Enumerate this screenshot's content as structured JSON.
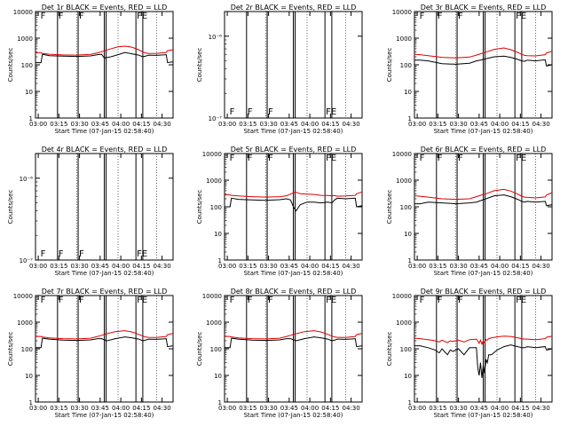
{
  "colors": {
    "events": "#000000",
    "lld": "#e00000",
    "axes": "#000000"
  },
  "shared": {
    "xlabel": "Start Time (07-Jan-15 02:58:40)",
    "ylabel": "Counts/sec",
    "x_tick_labels": [
      "03:00",
      "03:15",
      "03:30",
      "03:45",
      "04:00",
      "04:15",
      "04:30"
    ],
    "x_range_minutes": [
      0,
      100
    ],
    "y_scale": "log",
    "marker_letters": [
      "F",
      "F",
      "F",
      "FE"
    ]
  },
  "chart_data": [
    {
      "type": "line",
      "title": "Det 1r  BLACK = Events, RED = LLD",
      "ylim": [
        1,
        10000
      ],
      "y_tick_labels": [
        "1",
        "10",
        "100",
        "1000",
        "10000"
      ],
      "series": [
        {
          "x": [
            0,
            4,
            5,
            10,
            20,
            30,
            40,
            45,
            48,
            50,
            54,
            60,
            65,
            70,
            75,
            78,
            80,
            82,
            88,
            95,
            96,
            100
          ],
          "values": [
            120,
            120,
            250,
            220,
            210,
            205,
            215,
            240,
            250,
            180,
            195,
            240,
            290,
            260,
            230,
            200,
            210,
            230,
            225,
            240,
            120,
            130
          ]
        },
        {
          "x": [
            0,
            4,
            5,
            10,
            20,
            30,
            40,
            45,
            48,
            50,
            54,
            60,
            65,
            70,
            75,
            78,
            80,
            82,
            88,
            95,
            96,
            100
          ],
          "values": [
            280,
            280,
            270,
            250,
            235,
            230,
            245,
            280,
            310,
            330,
            390,
            470,
            500,
            460,
            370,
            300,
            280,
            270,
            265,
            290,
            340,
            370
          ]
        }
      ]
    },
    {
      "type": "line",
      "title": "Det 2r  BLACK = Events, RED = LLD",
      "ylim": [
        1e-07,
        2e-06
      ],
      "y_tick_labels": [
        "10⁻⁷",
        "10⁻⁶"
      ],
      "series": [
        {
          "x": [],
          "values": []
        },
        {
          "x": [],
          "values": []
        }
      ]
    },
    {
      "type": "line",
      "title": "Det 3r  BLACK = Events, RED = LLD",
      "ylim": [
        1,
        10000
      ],
      "y_tick_labels": [
        "1",
        "10",
        "100",
        "1000",
        "10000"
      ],
      "series": [
        {
          "x": [
            0,
            4,
            10,
            20,
            30,
            40,
            45,
            48,
            52,
            58,
            65,
            70,
            75,
            78,
            80,
            82,
            88,
            95,
            96,
            100
          ],
          "values": [
            150,
            150,
            140,
            110,
            105,
            115,
            140,
            150,
            170,
            200,
            210,
            190,
            160,
            140,
            135,
            150,
            140,
            155,
            90,
            100
          ]
        },
        {
          "x": [
            0,
            4,
            10,
            20,
            30,
            40,
            45,
            48,
            52,
            58,
            65,
            70,
            75,
            78,
            80,
            82,
            88,
            95,
            96,
            100
          ],
          "values": [
            250,
            240,
            220,
            190,
            180,
            195,
            230,
            260,
            300,
            380,
            430,
            370,
            290,
            245,
            225,
            220,
            215,
            240,
            280,
            320
          ]
        }
      ]
    },
    {
      "type": "line",
      "title": "Det 4r  BLACK = Events, RED = LLD",
      "ylim": [
        1e-07,
        2e-06
      ],
      "y_tick_labels": [
        "10⁻⁷",
        "10⁻⁶"
      ],
      "series": [
        {
          "x": [],
          "values": []
        },
        {
          "x": [],
          "values": []
        }
      ]
    },
    {
      "type": "line",
      "title": "Det 5r  BLACK = Events, RED = LLD",
      "ylim": [
        1,
        10000
      ],
      "y_tick_labels": [
        "1",
        "10",
        "100",
        "1000",
        "10000"
      ],
      "series": [
        {
          "x": [
            0,
            4,
            5,
            10,
            20,
            30,
            40,
            45,
            48,
            50,
            52,
            55,
            60,
            65,
            70,
            75,
            78,
            80,
            82,
            88,
            95,
            96,
            100
          ],
          "values": [
            100,
            100,
            210,
            190,
            180,
            175,
            185,
            200,
            180,
            100,
            70,
            120,
            150,
            150,
            140,
            150,
            140,
            180,
            210,
            200,
            210,
            100,
            110
          ]
        },
        {
          "x": [
            0,
            4,
            5,
            10,
            20,
            30,
            40,
            45,
            48,
            50,
            52,
            55,
            60,
            65,
            70,
            75,
            78,
            80,
            82,
            88,
            95,
            96,
            100
          ],
          "values": [
            280,
            280,
            270,
            255,
            240,
            230,
            240,
            260,
            300,
            330,
            350,
            310,
            300,
            290,
            270,
            265,
            260,
            265,
            250,
            255,
            270,
            310,
            360
          ]
        }
      ]
    },
    {
      "type": "line",
      "title": "Det 6r  BLACK = Events, RED = LLD",
      "ylim": [
        1,
        10000
      ],
      "y_tick_labels": [
        "1",
        "10",
        "100",
        "1000",
        "10000"
      ],
      "series": [
        {
          "x": [
            0,
            4,
            10,
            20,
            30,
            40,
            45,
            48,
            52,
            58,
            65,
            70,
            75,
            78,
            80,
            82,
            88,
            95,
            96,
            100
          ],
          "values": [
            130,
            130,
            150,
            140,
            130,
            140,
            150,
            170,
            200,
            260,
            280,
            240,
            190,
            160,
            150,
            160,
            150,
            160,
            110,
            120
          ]
        },
        {
          "x": [
            0,
            4,
            10,
            20,
            30,
            40,
            45,
            48,
            52,
            58,
            65,
            70,
            75,
            78,
            80,
            82,
            88,
            95,
            96,
            100
          ],
          "values": [
            260,
            250,
            230,
            200,
            190,
            200,
            240,
            270,
            310,
            400,
            450,
            390,
            300,
            250,
            230,
            225,
            215,
            235,
            280,
            340
          ]
        }
      ]
    },
    {
      "type": "line",
      "title": "Det 7r  BLACK = Events, RED = LLD",
      "ylim": [
        1,
        10000
      ],
      "y_tick_labels": [
        "1",
        "10",
        "100",
        "1000",
        "10000"
      ],
      "series": [
        {
          "x": [
            0,
            4,
            5,
            10,
            20,
            30,
            40,
            45,
            48,
            52,
            58,
            65,
            70,
            75,
            78,
            80,
            82,
            88,
            95,
            96,
            100
          ],
          "values": [
            110,
            110,
            250,
            230,
            210,
            205,
            215,
            240,
            240,
            200,
            240,
            280,
            260,
            230,
            200,
            210,
            230,
            225,
            240,
            120,
            130
          ]
        },
        {
          "x": [
            0,
            4,
            5,
            10,
            20,
            30,
            40,
            45,
            48,
            52,
            58,
            65,
            70,
            75,
            78,
            80,
            82,
            88,
            95,
            96,
            100
          ],
          "values": [
            290,
            290,
            280,
            255,
            240,
            235,
            250,
            290,
            320,
            370,
            440,
            480,
            430,
            350,
            300,
            280,
            270,
            265,
            290,
            340,
            380
          ]
        }
      ]
    },
    {
      "type": "line",
      "title": "Det 8r  BLACK = Events, RED = LLD",
      "ylim": [
        1,
        10000
      ],
      "y_tick_labels": [
        "1",
        "10",
        "100",
        "1000",
        "10000"
      ],
      "series": [
        {
          "x": [
            0,
            4,
            5,
            10,
            20,
            30,
            40,
            45,
            48,
            52,
            58,
            65,
            70,
            75,
            78,
            80,
            82,
            88,
            95,
            96,
            100
          ],
          "values": [
            110,
            110,
            250,
            230,
            210,
            205,
            215,
            240,
            240,
            200,
            240,
            280,
            260,
            230,
            200,
            210,
            230,
            225,
            240,
            120,
            130
          ]
        },
        {
          "x": [
            0,
            4,
            5,
            10,
            20,
            30,
            40,
            45,
            48,
            52,
            58,
            65,
            70,
            75,
            78,
            80,
            82,
            88,
            95,
            96,
            100
          ],
          "values": [
            290,
            290,
            280,
            255,
            240,
            235,
            250,
            290,
            320,
            370,
            440,
            480,
            430,
            350,
            300,
            280,
            270,
            265,
            290,
            340,
            380
          ]
        }
      ]
    },
    {
      "type": "line",
      "title": "Det 9r  BLACK = Events, RED = LLD",
      "ylim": [
        1,
        10000
      ],
      "y_tick_labels": [
        "1",
        "10",
        "100",
        "1000",
        "10000"
      ],
      "series": [
        {
          "x": [
            0,
            4,
            10,
            15,
            18,
            20,
            24,
            26,
            28,
            32,
            36,
            40,
            45,
            46,
            47,
            48,
            49,
            50,
            51,
            52,
            53,
            54,
            56,
            60,
            65,
            70,
            75,
            78,
            80,
            82,
            88,
            95,
            96,
            100
          ],
          "values": [
            130,
            130,
            110,
            90,
            70,
            100,
            60,
            90,
            80,
            100,
            60,
            110,
            110,
            20,
            10,
            30,
            8,
            25,
            12,
            40,
            30,
            60,
            60,
            90,
            120,
            140,
            120,
            110,
            110,
            120,
            110,
            120,
            90,
            100
          ]
        },
        {
          "x": [
            0,
            4,
            10,
            15,
            18,
            20,
            24,
            26,
            28,
            32,
            36,
            40,
            45,
            46,
            47,
            48,
            49,
            50,
            51,
            52,
            53,
            54,
            56,
            60,
            65,
            70,
            75,
            78,
            80,
            82,
            88,
            95,
            96,
            100
          ],
          "values": [
            250,
            240,
            220,
            200,
            180,
            210,
            170,
            200,
            190,
            210,
            180,
            220,
            230,
            200,
            160,
            210,
            150,
            200,
            170,
            220,
            210,
            240,
            260,
            280,
            300,
            290,
            260,
            240,
            230,
            230,
            220,
            240,
            270,
            300
          ]
        }
      ]
    }
  ]
}
